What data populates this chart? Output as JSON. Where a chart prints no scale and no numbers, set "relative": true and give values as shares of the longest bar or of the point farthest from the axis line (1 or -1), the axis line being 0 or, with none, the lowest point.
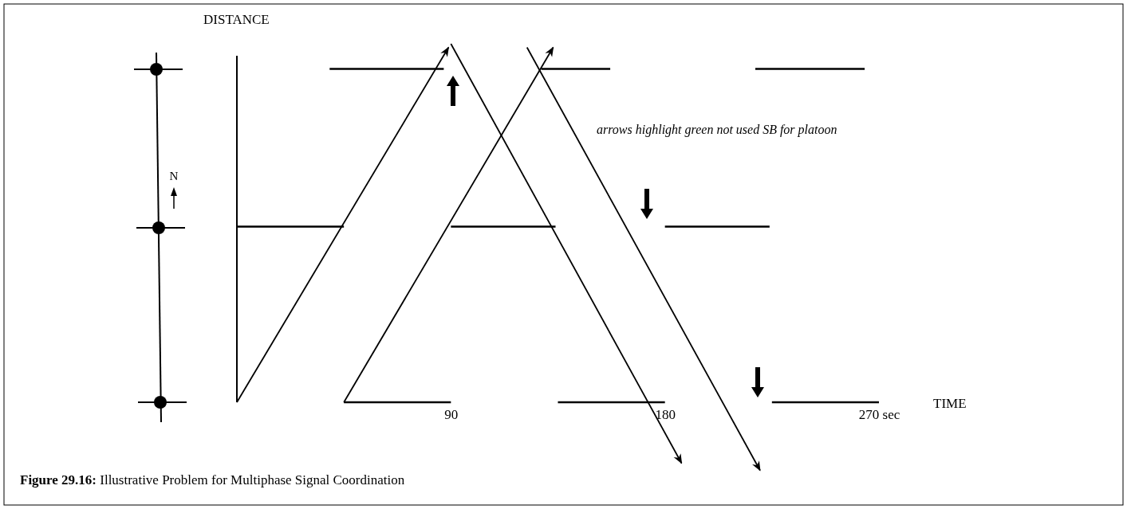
{
  "chart_data": {
    "type": "line",
    "title": "Figure 29.16: Illustrative Problem for Multiphase Signal Coordination",
    "xlabel": "TIME",
    "ylabel": "DISTANCE",
    "relative": true,
    "xlim": [
      0,
      270
    ],
    "xticks": [
      90,
      180,
      {
        "value": 270,
        "label": "270 sec"
      }
    ],
    "grid": false,
    "marker": "none",
    "line_style": "solid",
    "series": [
      {
        "color": "#000000",
        "x": [
          39,
          87
        ],
        "values": [
          0.93,
          0.93
        ]
      },
      {
        "color": "#000000",
        "x": [
          128,
          157
        ],
        "values": [
          0.93,
          0.93
        ]
      },
      {
        "color": "#000000",
        "x": [
          218,
          264
        ],
        "values": [
          0.93,
          0.93
        ]
      },
      {
        "color": "#000000",
        "x": [
          0,
          45
        ],
        "values": [
          0.49,
          0.49
        ]
      },
      {
        "color": "#000000",
        "x": [
          90,
          134
        ],
        "values": [
          0.49,
          0.49
        ]
      },
      {
        "color": "#000000",
        "x": [
          180,
          224
        ],
        "values": [
          0.49,
          0.49
        ]
      },
      {
        "color": "#000000",
        "x": [
          45,
          90
        ],
        "values": [
          0,
          0
        ]
      },
      {
        "color": "#000000",
        "x": [
          135,
          180
        ],
        "values": [
          0,
          0
        ]
      },
      {
        "color": "#000000",
        "x": [
          225,
          270
        ],
        "values": [
          0,
          0
        ]
      },
      {
        "color": "#000000",
        "x": [
          0,
          89
        ],
        "values": [
          0,
          0.99
        ]
      },
      {
        "color": "#000000",
        "x": [
          45,
          133
        ],
        "values": [
          0,
          0.99
        ]
      },
      {
        "color": "#000000",
        "x": [
          90,
          187
        ],
        "values": [
          1,
          -0.17
        ]
      },
      {
        "color": "#000000",
        "x": [
          122,
          220
        ],
        "values": [
          0.99,
          -0.19
        ]
      }
    ],
    "annotations": [
      "arrows highlight green not used SB for platoon",
      "N"
    ]
  }
}
